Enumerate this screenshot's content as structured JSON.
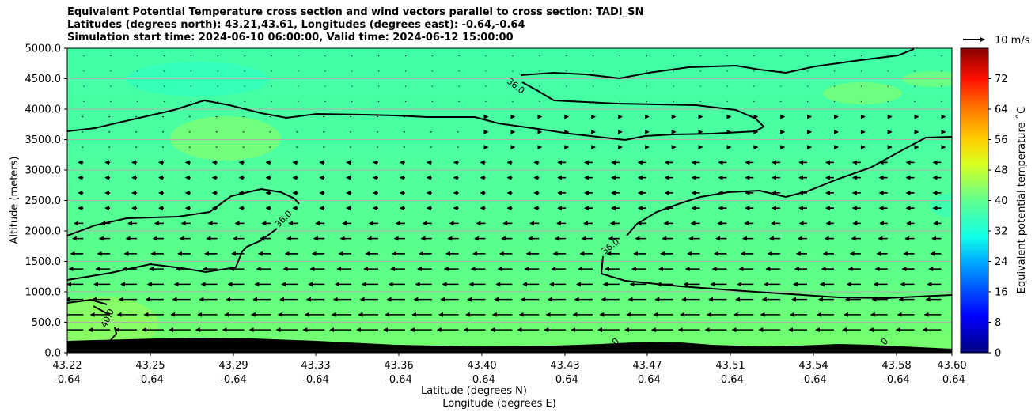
{
  "title": {
    "line1": "Equivalent Potential Temperature cross section and wind vectors parallel to cross section: TADI_SN",
    "line2": "Latitudes (degrees north): 43.21,43.61, Longitudes (degrees east): -0.64,-0.64",
    "line3": "Simulation start time: 2024-06-10 06:00:00, Valid time: 2024-06-12 15:00:00"
  },
  "chart_data": {
    "type": "heatmap",
    "title": "Equivalent Potential Temperature cross section and wind vectors parallel to cross section: TADI_SN",
    "ylabel": "Altitude (meters)",
    "xlabel": "Latitude (degrees N)",
    "xlabel2": "Longitude (degrees E)",
    "ylim": [
      0,
      5000
    ],
    "y_ticks": [
      "0.0",
      "500.0",
      "1000.0",
      "1500.0",
      "2000.0",
      "2500.0",
      "3000.0",
      "3500.0",
      "4000.0",
      "4500.0",
      "5000.0"
    ],
    "x_ticks_lat": [
      "43.22",
      "43.25",
      "43.29",
      "43.33",
      "43.36",
      "43.40",
      "43.43",
      "43.47",
      "43.51",
      "43.54",
      "43.58",
      "43.60"
    ],
    "x_ticks_lon": [
      "-0.64",
      "-0.64",
      "-0.64",
      "-0.64",
      "-0.64",
      "-0.64",
      "-0.64",
      "-0.64",
      "-0.64",
      "-0.64",
      "-0.64",
      "-0.64"
    ],
    "grid": "horizontal",
    "colorbar": {
      "label": "Equivalent potential temperature $^\\circ$C",
      "label_display": "Equivalent potential temperature ˚C",
      "ticks": [
        "0",
        "8",
        "16",
        "24",
        "32",
        "40",
        "48",
        "56",
        "64",
        "72"
      ],
      "range": [
        0,
        80
      ]
    },
    "contour_labels": [
      "36.0",
      "36.0",
      "36.0",
      "40.0",
      "0",
      "0"
    ],
    "quiver_key": "10 m/s"
  }
}
